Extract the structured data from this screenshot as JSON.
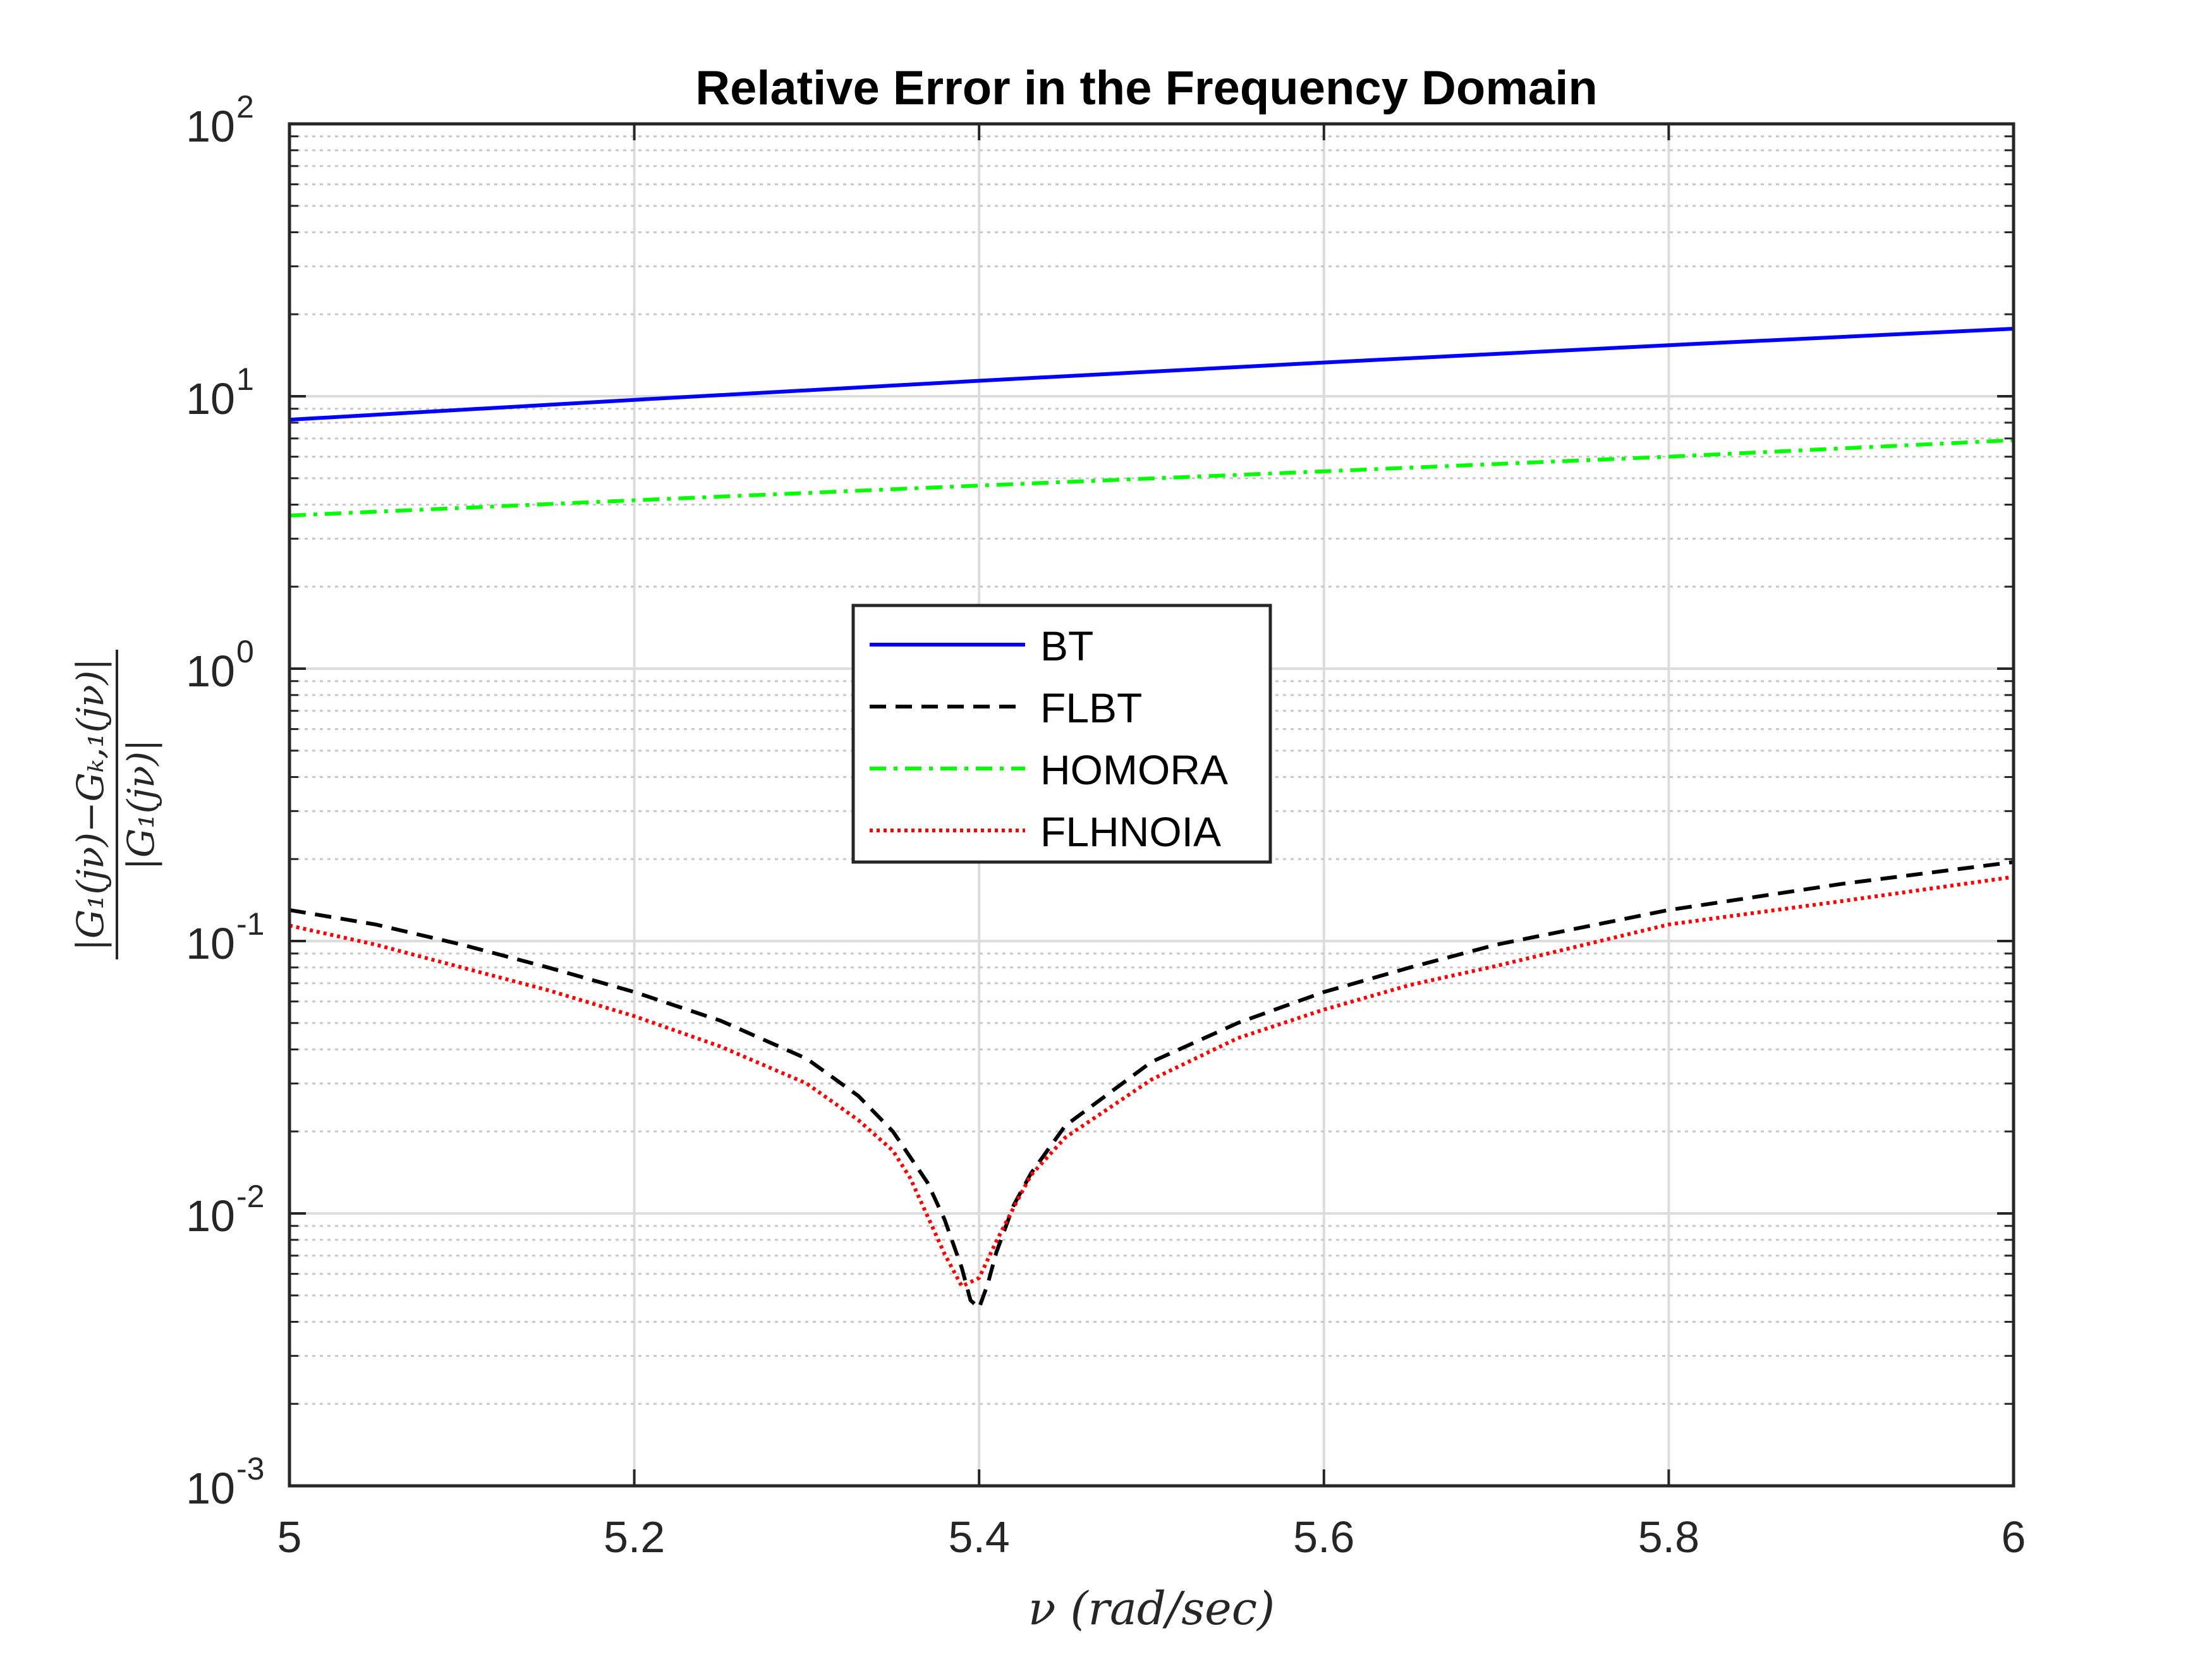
{
  "chart_data": {
    "type": "line",
    "title": "Relative Error in the Frequency Domain",
    "xlabel": "ν (rad/sec)",
    "ylabel": {
      "numerator": "|G₁(jν)−Gₖ,₁(jν)|",
      "denominator": "|G₁(jν)|"
    },
    "xlim": [
      5,
      6
    ],
    "ylim": [
      0.001,
      100
    ],
    "yscale": "log",
    "grid": true,
    "legend_position": "center",
    "x_ticks": [
      {
        "value": 5,
        "label": "5"
      },
      {
        "value": 5.2,
        "label": "5.2"
      },
      {
        "value": 5.4,
        "label": "5.4"
      },
      {
        "value": 5.6,
        "label": "5.6"
      },
      {
        "value": 5.8,
        "label": "5.8"
      },
      {
        "value": 6,
        "label": "6"
      }
    ],
    "y_ticks": [
      {
        "value": 0.001,
        "base": "10",
        "exp": "-3"
      },
      {
        "value": 0.01,
        "base": "10",
        "exp": "-2"
      },
      {
        "value": 0.1,
        "base": "10",
        "exp": "-1"
      },
      {
        "value": 1,
        "base": "10",
        "exp": "0"
      },
      {
        "value": 10,
        "base": "10",
        "exp": "1"
      },
      {
        "value": 100,
        "base": "10",
        "exp": "2"
      }
    ],
    "series": [
      {
        "name": "BT",
        "color": "#0000ff",
        "dash": "solid",
        "x": [
          5.0,
          5.2,
          5.4,
          5.6,
          5.8,
          6.0
        ],
        "y": [
          8.2,
          9.7,
          11.4,
          13.3,
          15.4,
          17.7
        ]
      },
      {
        "name": "FLBT",
        "color": "#000000",
        "dash": "dashed",
        "x": [
          5.0,
          5.05,
          5.1,
          5.15,
          5.2,
          5.25,
          5.3,
          5.33,
          5.35,
          5.37,
          5.38,
          5.39,
          5.395,
          5.4,
          5.405,
          5.41,
          5.42,
          5.43,
          5.45,
          5.5,
          5.55,
          5.6,
          5.65,
          5.7,
          5.8,
          5.9,
          6.0
        ],
        "y": [
          0.13,
          0.115,
          0.097,
          0.08,
          0.065,
          0.051,
          0.037,
          0.027,
          0.02,
          0.013,
          0.0095,
          0.0063,
          0.0048,
          0.0045,
          0.0055,
          0.0072,
          0.0107,
          0.014,
          0.021,
          0.036,
          0.05,
          0.065,
          0.08,
          0.097,
          0.13,
          0.162,
          0.195
        ]
      },
      {
        "name": "HOMORA",
        "color": "#00ff00",
        "dash": "dashdot",
        "x": [
          5.0,
          5.2,
          5.4,
          5.6,
          5.8,
          6.0
        ],
        "y": [
          3.65,
          4.15,
          4.7,
          5.3,
          6.0,
          6.9
        ]
      },
      {
        "name": "FLHNOIA",
        "color": "#ff0000",
        "dash": "dotted",
        "x": [
          5.0,
          5.05,
          5.1,
          5.15,
          5.2,
          5.25,
          5.3,
          5.33,
          5.35,
          5.36,
          5.37,
          5.38,
          5.39,
          5.4,
          5.41,
          5.42,
          5.43,
          5.45,
          5.5,
          5.55,
          5.6,
          5.65,
          5.7,
          5.8,
          5.9,
          6.0
        ],
        "y": [
          0.114,
          0.097,
          0.08,
          0.066,
          0.053,
          0.041,
          0.03,
          0.022,
          0.017,
          0.0135,
          0.0098,
          0.0071,
          0.0054,
          0.0058,
          0.0079,
          0.0105,
          0.0138,
          0.019,
          0.031,
          0.044,
          0.056,
          0.069,
          0.081,
          0.115,
          0.14,
          0.172
        ]
      }
    ]
  }
}
